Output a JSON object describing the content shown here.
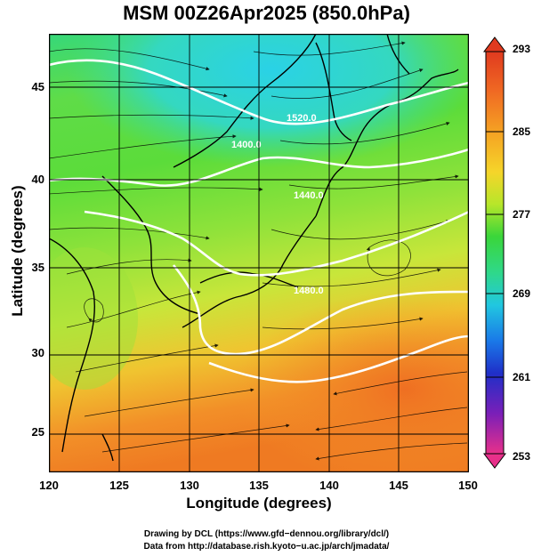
{
  "title": "MSM 00Z26Apr2025 (850.0hPa)",
  "x_axis": {
    "label": "Longitude (degrees)",
    "ticks": [
      "120",
      "125",
      "130",
      "135",
      "140",
      "145",
      "150"
    ],
    "range": [
      120,
      150
    ]
  },
  "y_axis": {
    "label": "Latitude  (degrees)",
    "ticks": [
      "25",
      "30",
      "35",
      "40",
      "45"
    ],
    "range": [
      22.5,
      47.8
    ]
  },
  "colorbar": {
    "ticks": [
      "293",
      "285",
      "277",
      "269",
      "261",
      "253"
    ],
    "range": [
      253,
      293
    ],
    "colors": [
      "#e8308a",
      "#7a1fb8",
      "#1f2fc8",
      "#1a78e8",
      "#21c7e0",
      "#2fd88a",
      "#3ad63a",
      "#b7e62a",
      "#f5d52a",
      "#f5a223",
      "#f06a23",
      "#e03a1f"
    ]
  },
  "contour_labels": [
    "1400.0",
    "1440.0",
    "1480.0",
    "1520.0"
  ],
  "credits": [
    "Drawing by DCL (https://www.gfd−dennou.org/library/dcl/)",
    "Data from http://database.rish.kyoto−u.ac.jp/arch/jmadata/"
  ]
}
